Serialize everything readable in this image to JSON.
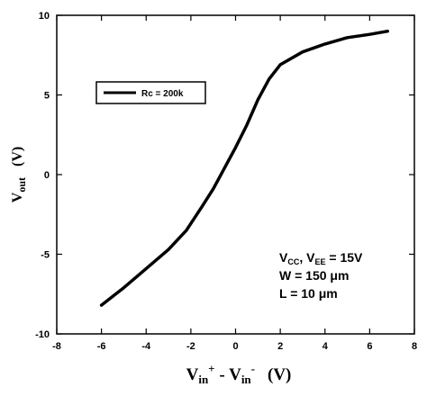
{
  "chart_data": {
    "type": "line",
    "x_axis": {
      "range": [
        -8,
        8
      ],
      "ticks": [
        -8,
        -6,
        -4,
        -2,
        0,
        2,
        4,
        6,
        8
      ]
    },
    "y_axis": {
      "range": [
        -10,
        10
      ],
      "ticks": [
        -10,
        -5,
        0,
        5,
        10
      ]
    },
    "xlabel": {
      "part1": "V",
      "part1_sub": "in",
      "part1_sup": "+",
      "dash": " - ",
      "part2": "V",
      "part2_sub": "in",
      "part2_sup": "-",
      "unit": "(V)"
    },
    "ylabel": {
      "part1": "V",
      "part1_sub": "out",
      "unit": "(V)"
    },
    "legend": {
      "placement": "top-left",
      "label": "Rc = 200k"
    },
    "annotation": {
      "line1_v1": "V",
      "line1_sub1": "CC",
      "line1_mid": ", V",
      "line1_sub2": "EE",
      "line1_end": " = 15V",
      "line2": "W = 150 μm",
      "line3": "L = 10 μm"
    },
    "grid": false,
    "series": [
      {
        "name": "Rc = 200k",
        "color": "#000000",
        "points": [
          [
            -6.0,
            -8.2
          ],
          [
            -5.0,
            -7.1
          ],
          [
            -4.0,
            -5.9
          ],
          [
            -3.0,
            -4.7
          ],
          [
            -2.2,
            -3.5
          ],
          [
            -1.5,
            -2.0
          ],
          [
            -1.0,
            -0.9
          ],
          [
            -0.5,
            0.4
          ],
          [
            0.0,
            1.7
          ],
          [
            0.5,
            3.1
          ],
          [
            1.0,
            4.7
          ],
          [
            1.5,
            6.0
          ],
          [
            2.0,
            6.9
          ],
          [
            3.0,
            7.7
          ],
          [
            4.0,
            8.2
          ],
          [
            5.0,
            8.6
          ],
          [
            6.0,
            8.8
          ],
          [
            6.8,
            9.0
          ]
        ]
      }
    ]
  }
}
